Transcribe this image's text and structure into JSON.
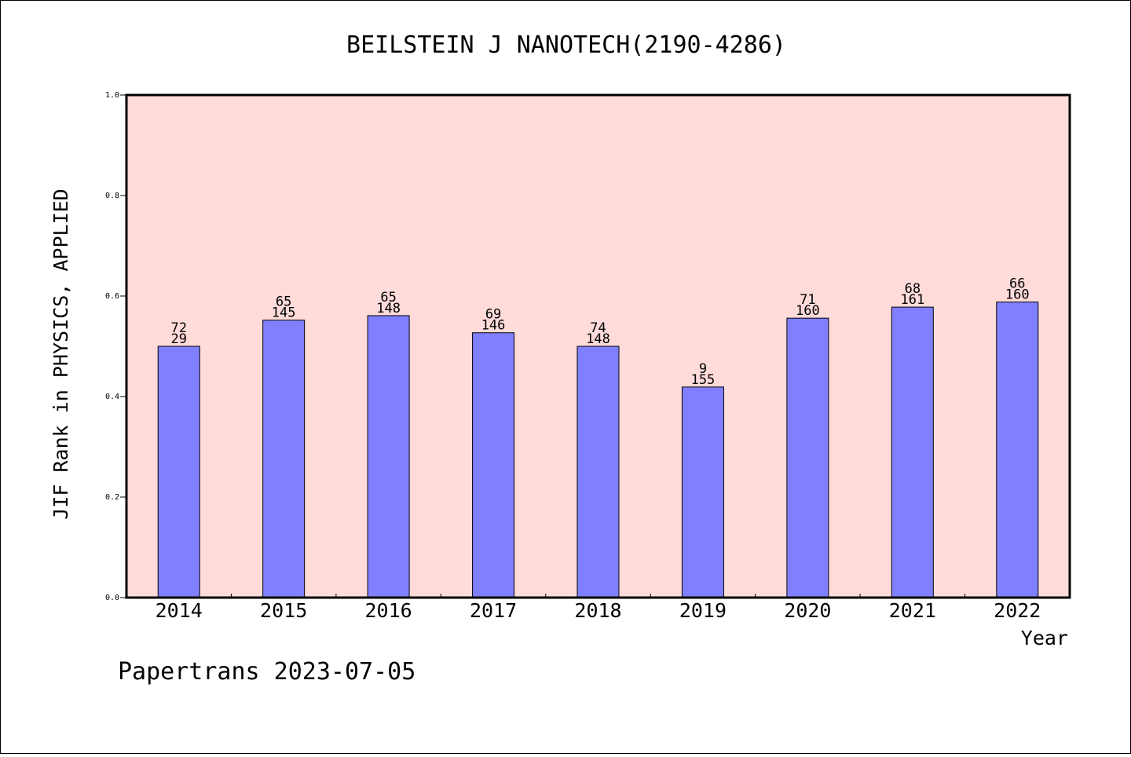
{
  "chart_data": {
    "type": "bar",
    "title": "BEILSTEIN J NANOTECH(2190-4286)",
    "xlabel": "Year",
    "ylabel": "JIF Rank in PHYSICS, APPLIED",
    "ylim": [
      0,
      1.0
    ],
    "yticks": [
      "0.0",
      "0.2",
      "0.4",
      "0.6",
      "0.8",
      "1.0"
    ],
    "grid": false,
    "background": "#ffdbd9",
    "bar_color": "#8080ff",
    "categories": [
      "2014",
      "2015",
      "2016",
      "2017",
      "2018",
      "2019",
      "2020",
      "2021",
      "2022"
    ],
    "values": [
      0.5,
      0.552,
      0.561,
      0.527,
      0.5,
      0.419,
      0.556,
      0.578,
      0.588
    ],
    "rank": [
      "72",
      "65",
      "65",
      "69",
      "74",
      "9",
      "71",
      "68",
      "66"
    ],
    "total": [
      "29",
      "145",
      "148",
      "146",
      "148",
      "155",
      "160",
      "161",
      "160"
    ]
  },
  "footer": {
    "text": "Papertrans 2023-07-05"
  }
}
